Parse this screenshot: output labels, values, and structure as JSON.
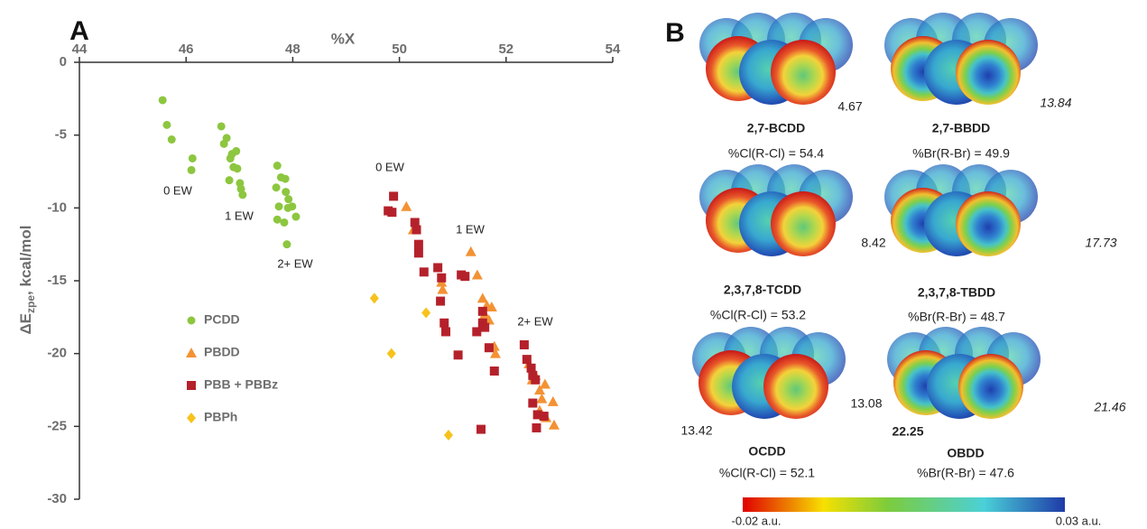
{
  "chart_data": {
    "type": "scatter",
    "panel_label": "A",
    "xlabel": "%X",
    "ylabel": {
      "main": "ΔE",
      "sub": "zpe",
      "rest": ", kcal/mol"
    },
    "xlim": [
      44,
      54
    ],
    "xticks": [
      44,
      46,
      48,
      50,
      52,
      54
    ],
    "ylim": [
      -30,
      0
    ],
    "yticks": [
      0,
      -5,
      -10,
      -15,
      -20,
      -25,
      -30
    ],
    "annotations": [
      "0 EW",
      "1 EW",
      "2+ EW",
      "0 EW",
      "1 EW",
      "2+ EW"
    ],
    "series": [
      {
        "name": "PCDD",
        "color": "#8dc63f",
        "marker": "circle",
        "x": [
          45.56,
          45.64,
          45.73,
          46.12,
          46.1,
          46.66,
          46.76,
          46.71,
          46.86,
          46.94,
          46.83,
          46.89,
          46.96,
          46.81,
          47.01,
          47.03,
          47.06,
          47.71,
          47.78,
          47.86,
          47.69,
          47.87,
          47.92,
          47.99,
          47.74,
          47.91,
          48.06,
          47.71,
          47.84,
          47.89
        ],
        "values": [
          -2.6,
          -4.3,
          -5.3,
          -6.6,
          -7.4,
          -4.4,
          -5.2,
          -5.6,
          -6.3,
          -6.1,
          -6.6,
          -7.2,
          -7.3,
          -8.1,
          -8.3,
          -8.7,
          -9.1,
          -7.1,
          -7.9,
          -8.0,
          -8.6,
          -8.9,
          -9.4,
          -9.9,
          -9.9,
          -10.0,
          -10.6,
          -10.8,
          -11.0,
          -12.5
        ]
      },
      {
        "name": "PBDD",
        "color": "#f39234",
        "marker": "triangle",
        "x": [
          50.13,
          50.26,
          51.34,
          51.46,
          51.56,
          51.64,
          51.73,
          51.6,
          51.68,
          50.79,
          50.81,
          51.78,
          51.8,
          52.43,
          52.55,
          52.73,
          52.63,
          52.88,
          52.67,
          52.63,
          52.75,
          52.9,
          52.49
        ],
        "values": [
          -9.9,
          -11.5,
          -13.0,
          -14.6,
          -16.2,
          -16.7,
          -16.8,
          -17.3,
          -17.7,
          -15.1,
          -15.6,
          -19.5,
          -20.0,
          -20.7,
          -21.5,
          -22.1,
          -22.5,
          -23.3,
          -23.1,
          -23.9,
          -24.4,
          -24.9,
          -21.8
        ]
      },
      {
        "name": "PBB + PBBz",
        "color": "#b5212b",
        "marker": "square",
        "x": [
          49.89,
          49.79,
          49.86,
          50.29,
          50.32,
          50.36,
          50.36,
          50.46,
          50.72,
          50.79,
          50.77,
          50.84,
          50.87,
          51.16,
          51.23,
          51.1,
          51.45,
          51.56,
          51.56,
          51.6,
          51.68,
          51.78,
          51.53,
          52.34,
          52.39,
          52.47,
          52.5,
          52.55,
          52.5,
          52.59,
          52.57,
          52.71
        ],
        "values": [
          -9.2,
          -10.2,
          -10.3,
          -11.0,
          -11.5,
          -12.5,
          -13.1,
          -14.4,
          -14.1,
          -14.8,
          -16.4,
          -17.9,
          -18.5,
          -14.6,
          -14.7,
          -20.1,
          -18.5,
          -17.1,
          -17.9,
          -18.2,
          -19.6,
          -21.2,
          -25.2,
          -19.4,
          -20.4,
          -21.0,
          -21.5,
          -21.8,
          -23.4,
          -24.2,
          -25.1,
          -24.3
        ]
      },
      {
        "name": "PBPh",
        "color": "#f7c21b",
        "marker": "diamond",
        "x": [
          49.53,
          50.5,
          49.85,
          50.92
        ],
        "values": [
          -16.2,
          -17.2,
          -20.0,
          -25.6
        ]
      }
    ]
  },
  "panel_b": {
    "panel_label": "B",
    "molecules": [
      {
        "name": "2,7-BCDD",
        "percent": "%Cl(R-Cl) = 54.4",
        "values": [
          "4.67"
        ]
      },
      {
        "name": "2,7-BBDD",
        "percent": "%Br(R-Br) = 49.9",
        "values": [
          "13.84"
        ]
      },
      {
        "name": "2,3,7,8-TCDD",
        "percent": "%Cl(R-Cl) = 53.2",
        "values": [
          "8.42"
        ]
      },
      {
        "name": "2,3,7,8-TBDD",
        "percent": "%Br(R-Br) = 48.7",
        "values": [
          "17.73"
        ]
      },
      {
        "name": "OCDD",
        "percent": "%Cl(R-Cl) = 52.1",
        "values": [
          "13.42",
          "13.08"
        ]
      },
      {
        "name": "OBDD",
        "percent": "%Br(R-Br) = 47.6",
        "values": [
          "22.25",
          "21.46"
        ]
      }
    ],
    "colorbar": {
      "min": "-0.02 a.u.",
      "max": "0.03 a.u."
    }
  }
}
